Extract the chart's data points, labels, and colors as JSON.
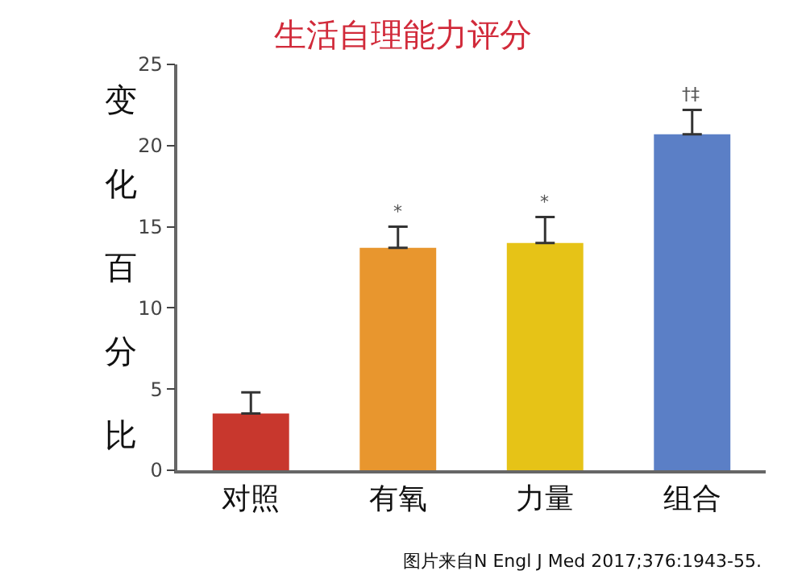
{
  "chart_data": {
    "type": "bar",
    "title": "生活自理能力评分",
    "ylabel": "变化百分比",
    "categories": [
      "对照",
      "有氧",
      "力量",
      "组合"
    ],
    "values": [
      3.5,
      13.7,
      14.0,
      20.7
    ],
    "colors": [
      "#c8372d",
      "#e8962e",
      "#e6c317",
      "#5b7fc6"
    ],
    "errors": [
      [
        3.5,
        4.8
      ],
      [
        13.7,
        15.0
      ],
      [
        14.0,
        15.6
      ],
      [
        20.7,
        22.2
      ]
    ],
    "ylim": [
      0,
      25
    ],
    "yticks": [
      0,
      5,
      10,
      15,
      20,
      25
    ],
    "annotations": [
      {
        "text": "*",
        "x": "有氧",
        "y": 15.0
      },
      {
        "text": "*",
        "x": "力量",
        "y": 15.6
      },
      {
        "text": "†‡",
        "x": "组合",
        "y": 22.2
      },
      "图片来自N Engl J Med 2017;376:1943-55."
    ]
  }
}
